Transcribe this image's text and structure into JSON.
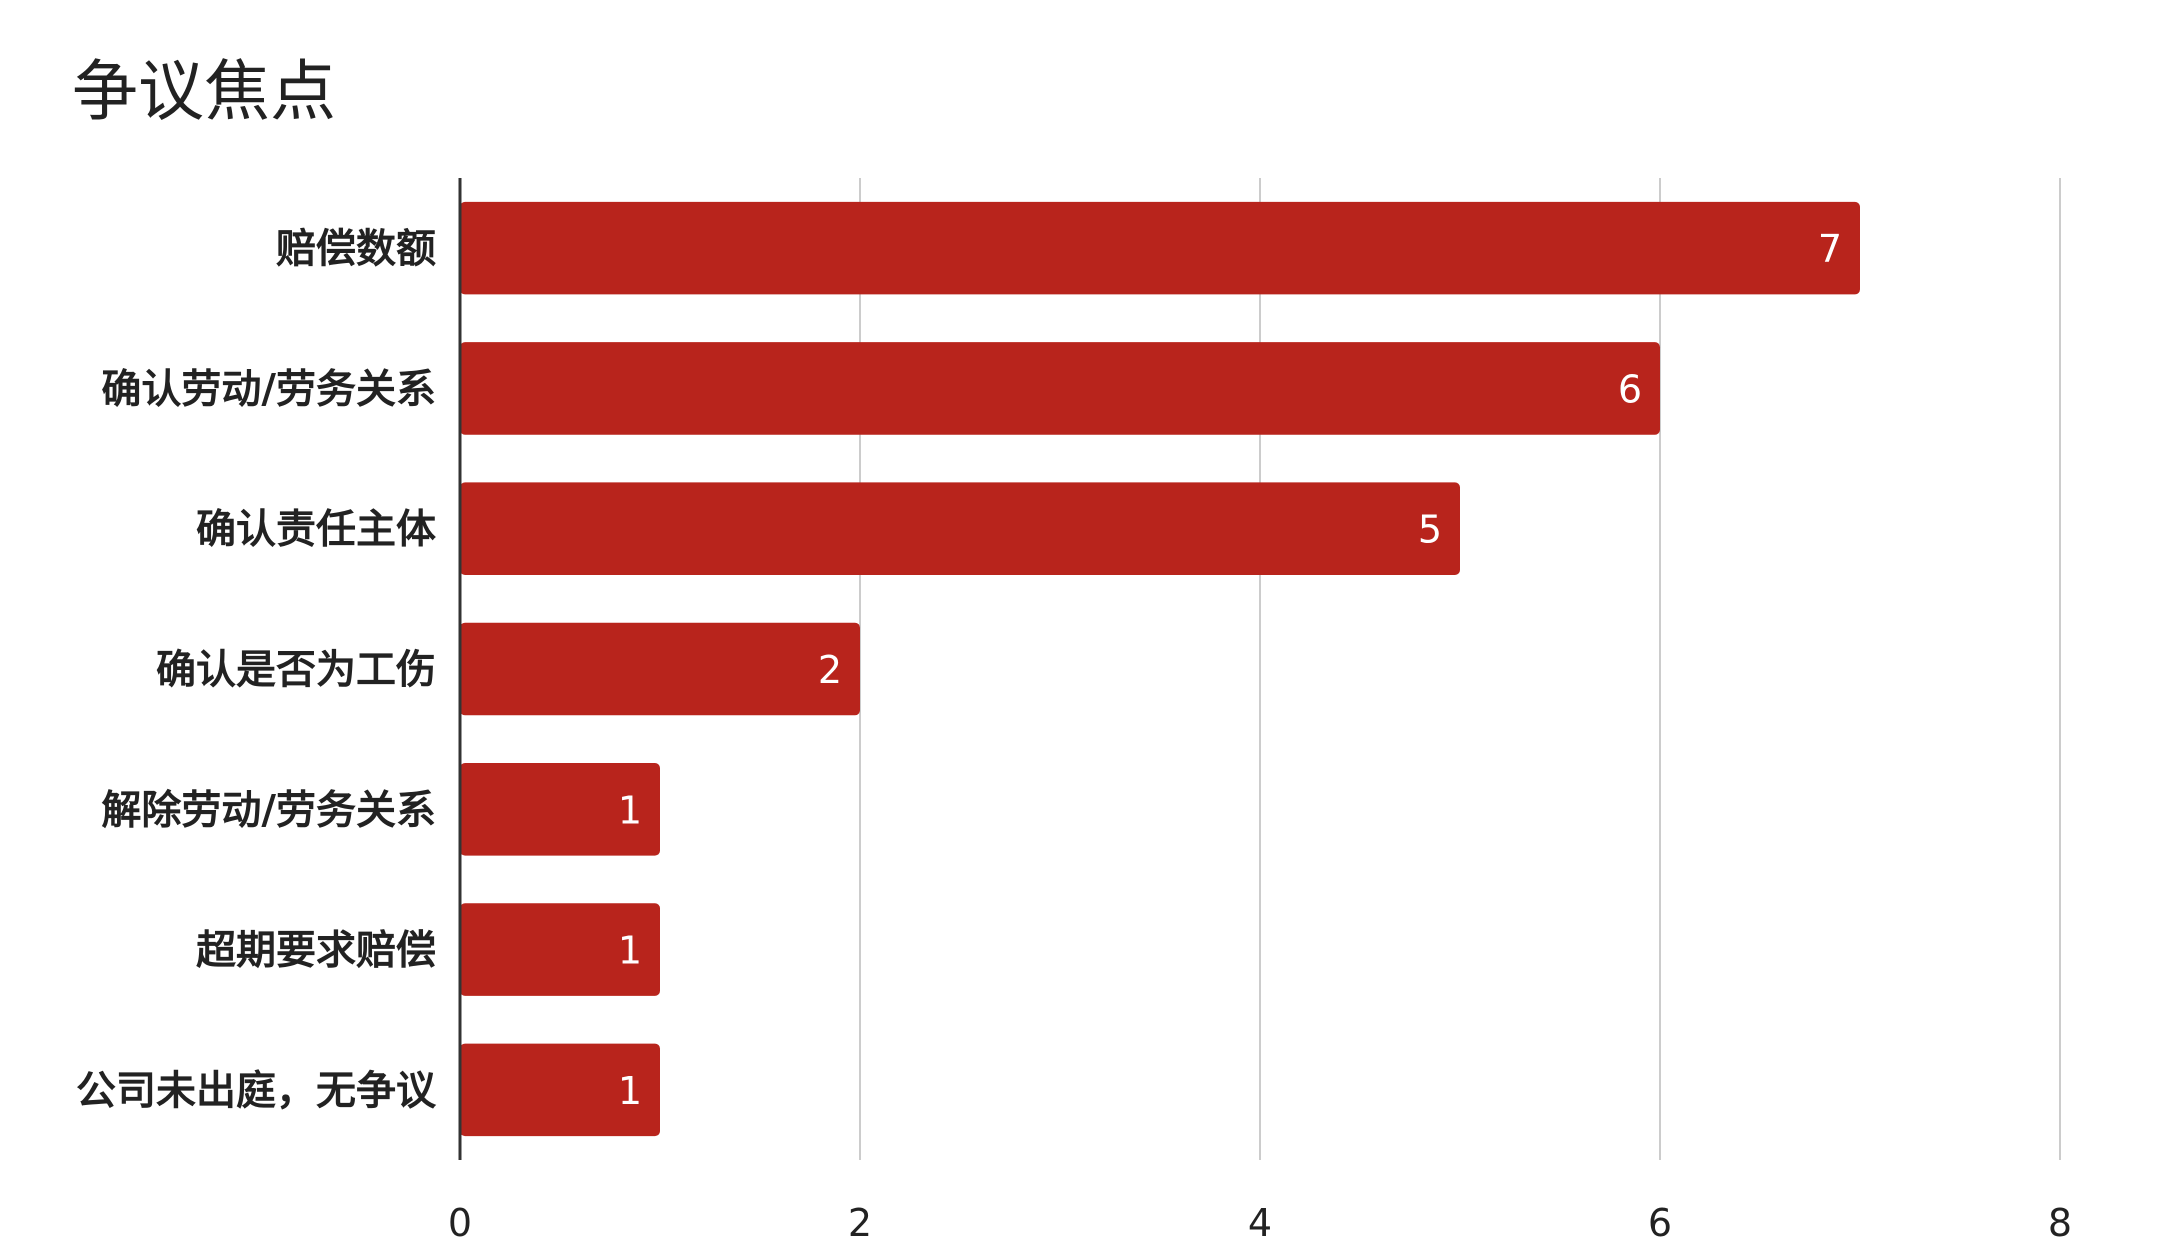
{
  "chart_data": {
    "type": "bar",
    "orientation": "horizontal",
    "title": "争议焦点",
    "xlabel": "",
    "ylabel": "",
    "categories": [
      "赔偿数额",
      "确认劳动/劳务关系",
      "确认责任主体",
      "确认是否为工伤",
      "解除劳动/劳务关系",
      "超期要求赔偿",
      "公司未出庭，无争议"
    ],
    "values": [
      7,
      6,
      5,
      2,
      1,
      1,
      1
    ],
    "xlim": [
      0,
      8
    ],
    "xticks": [
      0,
      2,
      4,
      6,
      8
    ],
    "grid": true,
    "legend": "none",
    "data_labels": true,
    "colors": {
      "bar": "#b8241c",
      "grid": "#cccccc",
      "axis": "#333333",
      "text": "#222222",
      "data_label": "#ffffff"
    }
  }
}
